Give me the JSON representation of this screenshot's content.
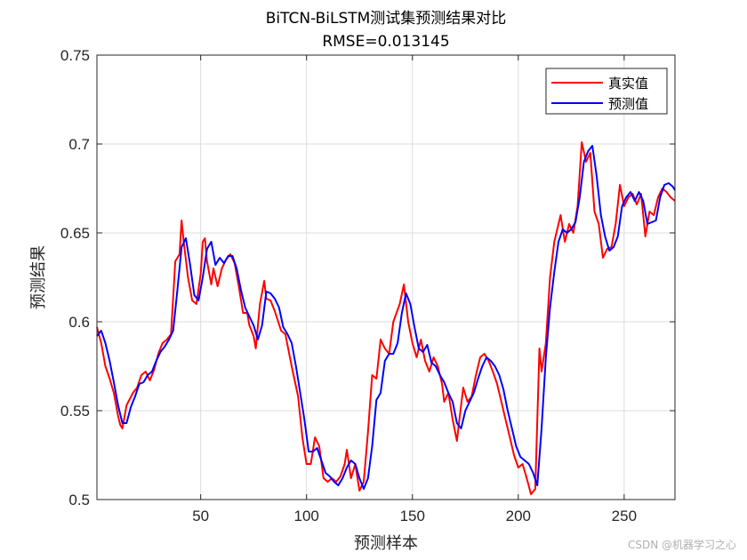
{
  "chart_data": {
    "type": "line",
    "title": "BiTCN-BiLSTM测试集预测结果对比",
    "subtitle": "RMSE=0.013145",
    "xlabel": "预测样本",
    "ylabel": "预测结果",
    "xlim": [
      1,
      274
    ],
    "ylim": [
      0.5,
      0.75
    ],
    "xticks": [
      50,
      100,
      150,
      200,
      250
    ],
    "yticks": [
      0.5,
      0.55,
      0.6,
      0.65,
      0.7,
      0.75
    ],
    "xtick_labels": [
      "50",
      "100",
      "150",
      "200",
      "250"
    ],
    "ytick_labels": [
      "0.5",
      "0.55",
      "0.6",
      "0.65",
      "0.7",
      "0.75"
    ],
    "grid": true,
    "legend_position": "top-right",
    "series": [
      {
        "name": "真实值",
        "color": "#ff0000",
        "points": [
          [
            1,
            0.597
          ],
          [
            3,
            0.588
          ],
          [
            5,
            0.575
          ],
          [
            7,
            0.568
          ],
          [
            9,
            0.56
          ],
          [
            11,
            0.547
          ],
          [
            12,
            0.542
          ],
          [
            13,
            0.54
          ],
          [
            15,
            0.553
          ],
          [
            18,
            0.56
          ],
          [
            20,
            0.563
          ],
          [
            22,
            0.57
          ],
          [
            24,
            0.572
          ],
          [
            26,
            0.567
          ],
          [
            28,
            0.573
          ],
          [
            30,
            0.582
          ],
          [
            32,
            0.588
          ],
          [
            34,
            0.59
          ],
          [
            36,
            0.593
          ],
          [
            38,
            0.634
          ],
          [
            40,
            0.638
          ],
          [
            41,
            0.657
          ],
          [
            42,
            0.645
          ],
          [
            44,
            0.625
          ],
          [
            46,
            0.612
          ],
          [
            48,
            0.61
          ],
          [
            50,
            0.627
          ],
          [
            51,
            0.645
          ],
          [
            52,
            0.647
          ],
          [
            53,
            0.634
          ],
          [
            55,
            0.621
          ],
          [
            56,
            0.63
          ],
          [
            58,
            0.62
          ],
          [
            60,
            0.63
          ],
          [
            62,
            0.635
          ],
          [
            64,
            0.638
          ],
          [
            66,
            0.633
          ],
          [
            68,
            0.62
          ],
          [
            70,
            0.605
          ],
          [
            72,
            0.605
          ],
          [
            73,
            0.598
          ],
          [
            75,
            0.592
          ],
          [
            76,
            0.585
          ],
          [
            78,
            0.61
          ],
          [
            80,
            0.623
          ],
          [
            81,
            0.613
          ],
          [
            83,
            0.612
          ],
          [
            85,
            0.606
          ],
          [
            88,
            0.595
          ],
          [
            90,
            0.593
          ],
          [
            93,
            0.575
          ],
          [
            96,
            0.558
          ],
          [
            98,
            0.535
          ],
          [
            100,
            0.52
          ],
          [
            102,
            0.52
          ],
          [
            104,
            0.535
          ],
          [
            106,
            0.53
          ],
          [
            108,
            0.512
          ],
          [
            110,
            0.51
          ],
          [
            112,
            0.512
          ],
          [
            114,
            0.51
          ],
          [
            116,
            0.513
          ],
          [
            118,
            0.52
          ],
          [
            119,
            0.528
          ],
          [
            121,
            0.512
          ],
          [
            123,
            0.52
          ],
          [
            125,
            0.505
          ],
          [
            127,
            0.51
          ],
          [
            129,
            0.538
          ],
          [
            131,
            0.57
          ],
          [
            133,
            0.568
          ],
          [
            135,
            0.59
          ],
          [
            137,
            0.585
          ],
          [
            139,
            0.582
          ],
          [
            141,
            0.6
          ],
          [
            144,
            0.61
          ],
          [
            146,
            0.621
          ],
          [
            148,
            0.6
          ],
          [
            150,
            0.588
          ],
          [
            152,
            0.58
          ],
          [
            154,
            0.59
          ],
          [
            156,
            0.578
          ],
          [
            158,
            0.572
          ],
          [
            160,
            0.58
          ],
          [
            162,
            0.575
          ],
          [
            164,
            0.565
          ],
          [
            165,
            0.555
          ],
          [
            167,
            0.56
          ],
          [
            169,
            0.545
          ],
          [
            171,
            0.533
          ],
          [
            172,
            0.543
          ],
          [
            174,
            0.563
          ],
          [
            176,
            0.555
          ],
          [
            178,
            0.558
          ],
          [
            180,
            0.57
          ],
          [
            182,
            0.58
          ],
          [
            184,
            0.582
          ],
          [
            186,
            0.578
          ],
          [
            188,
            0.572
          ],
          [
            190,
            0.565
          ],
          [
            192,
            0.555
          ],
          [
            194,
            0.545
          ],
          [
            196,
            0.535
          ],
          [
            198,
            0.525
          ],
          [
            200,
            0.518
          ],
          [
            202,
            0.52
          ],
          [
            204,
            0.512
          ],
          [
            206,
            0.503
          ],
          [
            208,
            0.506
          ],
          [
            210,
            0.585
          ],
          [
            211,
            0.572
          ],
          [
            213,
            0.588
          ],
          [
            215,
            0.625
          ],
          [
            217,
            0.645
          ],
          [
            220,
            0.66
          ],
          [
            222,
            0.645
          ],
          [
            224,
            0.655
          ],
          [
            226,
            0.65
          ],
          [
            228,
            0.665
          ],
          [
            230,
            0.701
          ],
          [
            232,
            0.69
          ],
          [
            234,
            0.695
          ],
          [
            236,
            0.662
          ],
          [
            238,
            0.655
          ],
          [
            240,
            0.636
          ],
          [
            242,
            0.641
          ],
          [
            244,
            0.642
          ],
          [
            246,
            0.655
          ],
          [
            248,
            0.677
          ],
          [
            250,
            0.665
          ],
          [
            252,
            0.67
          ],
          [
            254,
            0.672
          ],
          [
            256,
            0.666
          ],
          [
            258,
            0.672
          ],
          [
            260,
            0.648
          ],
          [
            262,
            0.662
          ],
          [
            264,
            0.66
          ],
          [
            266,
            0.67
          ],
          [
            268,
            0.675
          ],
          [
            270,
            0.673
          ],
          [
            272,
            0.67
          ],
          [
            274,
            0.668
          ]
        ]
      },
      {
        "name": "预测值",
        "color": "#0000ff",
        "points": [
          [
            1,
            0.592
          ],
          [
            3,
            0.595
          ],
          [
            5,
            0.588
          ],
          [
            7,
            0.578
          ],
          [
            9,
            0.566
          ],
          [
            11,
            0.553
          ],
          [
            13,
            0.543
          ],
          [
            15,
            0.543
          ],
          [
            17,
            0.552
          ],
          [
            19,
            0.558
          ],
          [
            21,
            0.565
          ],
          [
            23,
            0.566
          ],
          [
            25,
            0.57
          ],
          [
            27,
            0.572
          ],
          [
            29,
            0.578
          ],
          [
            31,
            0.583
          ],
          [
            33,
            0.586
          ],
          [
            35,
            0.59
          ],
          [
            37,
            0.595
          ],
          [
            39,
            0.618
          ],
          [
            41,
            0.642
          ],
          [
            43,
            0.647
          ],
          [
            45,
            0.632
          ],
          [
            47,
            0.615
          ],
          [
            49,
            0.612
          ],
          [
            51,
            0.625
          ],
          [
            53,
            0.641
          ],
          [
            55,
            0.645
          ],
          [
            57,
            0.632
          ],
          [
            59,
            0.636
          ],
          [
            61,
            0.633
          ],
          [
            63,
            0.637
          ],
          [
            65,
            0.637
          ],
          [
            67,
            0.63
          ],
          [
            69,
            0.618
          ],
          [
            71,
            0.608
          ],
          [
            73,
            0.603
          ],
          [
            75,
            0.598
          ],
          [
            77,
            0.59
          ],
          [
            79,
            0.598
          ],
          [
            81,
            0.617
          ],
          [
            83,
            0.616
          ],
          [
            85,
            0.613
          ],
          [
            87,
            0.608
          ],
          [
            89,
            0.597
          ],
          [
            91,
            0.593
          ],
          [
            93,
            0.588
          ],
          [
            95,
            0.575
          ],
          [
            97,
            0.56
          ],
          [
            99,
            0.545
          ],
          [
            101,
            0.527
          ],
          [
            103,
            0.527
          ],
          [
            105,
            0.529
          ],
          [
            107,
            0.522
          ],
          [
            109,
            0.515
          ],
          [
            111,
            0.513
          ],
          [
            113,
            0.51
          ],
          [
            115,
            0.508
          ],
          [
            117,
            0.512
          ],
          [
            119,
            0.518
          ],
          [
            121,
            0.522
          ],
          [
            123,
            0.52
          ],
          [
            125,
            0.512
          ],
          [
            127,
            0.506
          ],
          [
            129,
            0.512
          ],
          [
            131,
            0.53
          ],
          [
            133,
            0.556
          ],
          [
            135,
            0.56
          ],
          [
            137,
            0.578
          ],
          [
            139,
            0.582
          ],
          [
            141,
            0.582
          ],
          [
            143,
            0.588
          ],
          [
            145,
            0.605
          ],
          [
            147,
            0.616
          ],
          [
            149,
            0.61
          ],
          [
            151,
            0.597
          ],
          [
            153,
            0.585
          ],
          [
            155,
            0.583
          ],
          [
            157,
            0.587
          ],
          [
            159,
            0.577
          ],
          [
            161,
            0.575
          ],
          [
            163,
            0.57
          ],
          [
            165,
            0.566
          ],
          [
            167,
            0.56
          ],
          [
            169,
            0.555
          ],
          [
            171,
            0.543
          ],
          [
            173,
            0.54
          ],
          [
            175,
            0.55
          ],
          [
            177,
            0.555
          ],
          [
            179,
            0.56
          ],
          [
            181,
            0.568
          ],
          [
            183,
            0.575
          ],
          [
            185,
            0.58
          ],
          [
            187,
            0.578
          ],
          [
            189,
            0.575
          ],
          [
            191,
            0.57
          ],
          [
            193,
            0.562
          ],
          [
            195,
            0.55
          ],
          [
            197,
            0.54
          ],
          [
            199,
            0.53
          ],
          [
            201,
            0.524
          ],
          [
            203,
            0.522
          ],
          [
            205,
            0.52
          ],
          [
            207,
            0.515
          ],
          [
            209,
            0.508
          ],
          [
            211,
            0.54
          ],
          [
            213,
            0.58
          ],
          [
            215,
            0.608
          ],
          [
            217,
            0.628
          ],
          [
            219,
            0.645
          ],
          [
            221,
            0.652
          ],
          [
            223,
            0.65
          ],
          [
            225,
            0.652
          ],
          [
            227,
            0.656
          ],
          [
            229,
            0.67
          ],
          [
            231,
            0.69
          ],
          [
            233,
            0.696
          ],
          [
            235,
            0.699
          ],
          [
            237,
            0.682
          ],
          [
            239,
            0.66
          ],
          [
            241,
            0.648
          ],
          [
            243,
            0.64
          ],
          [
            245,
            0.642
          ],
          [
            247,
            0.648
          ],
          [
            249,
            0.665
          ],
          [
            251,
            0.67
          ],
          [
            253,
            0.673
          ],
          [
            255,
            0.668
          ],
          [
            257,
            0.673
          ],
          [
            259,
            0.668
          ],
          [
            261,
            0.655
          ],
          [
            263,
            0.656
          ],
          [
            265,
            0.657
          ],
          [
            267,
            0.67
          ],
          [
            269,
            0.677
          ],
          [
            271,
            0.678
          ],
          [
            273,
            0.676
          ],
          [
            274,
            0.674
          ]
        ]
      }
    ]
  },
  "watermark": "CSDN @机器学习之心"
}
